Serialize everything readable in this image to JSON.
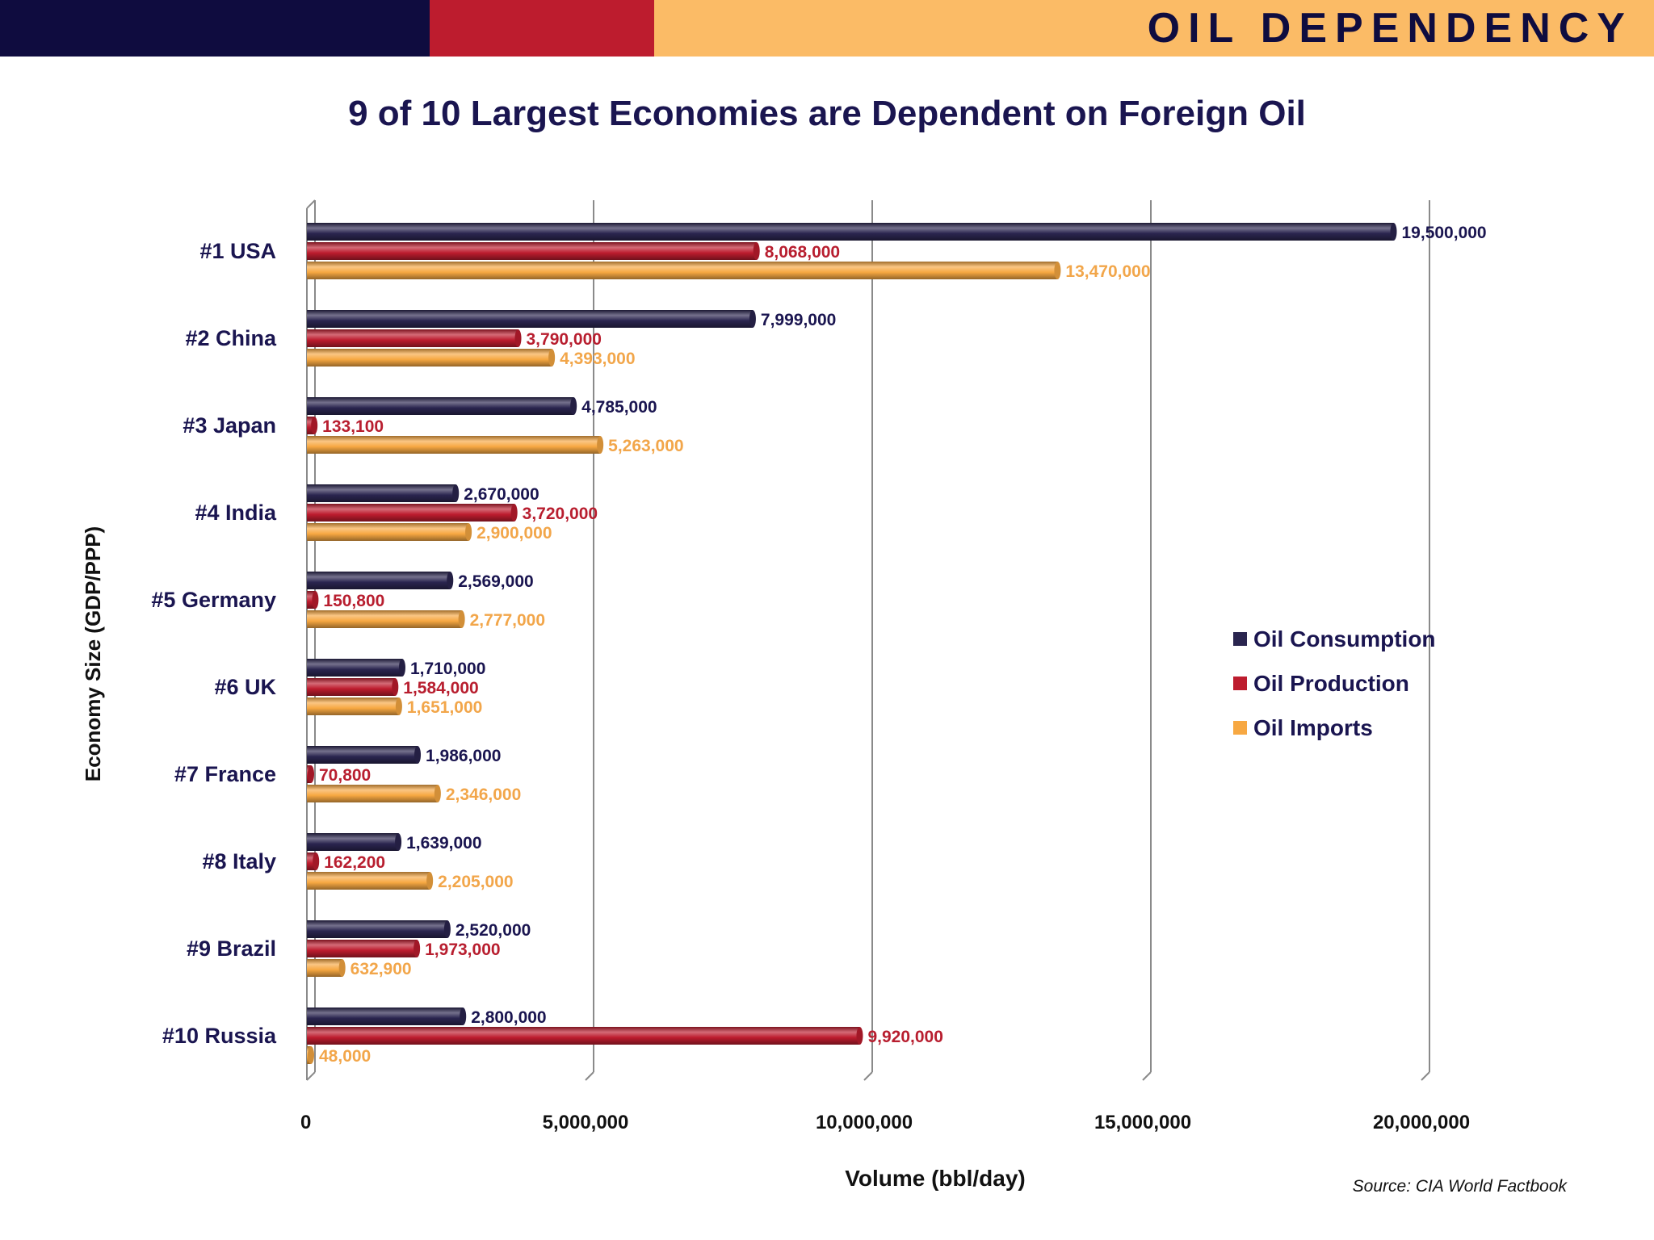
{
  "header": {
    "banner_title": "OIL DEPENDENCY",
    "colors": {
      "navy": "#0f0c3f",
      "red": "#bd1c2e",
      "gold": "#fbbb66"
    }
  },
  "footer": {
    "source": "Source: CIA World Factbook"
  },
  "chart_data": {
    "type": "bar",
    "orientation": "horizontal",
    "title": "9 of 10 Largest Economies are Dependent on Foreign Oil",
    "xlabel": "Volume (bbl/day)",
    "ylabel": "Economy Size (GDP/PPP)",
    "xlim": [
      0,
      20000000
    ],
    "x_ticks": [
      0,
      5000000,
      10000000,
      15000000,
      20000000
    ],
    "x_tick_labels": [
      "0",
      "5,000,000",
      "10,000,000",
      "15,000,000",
      "20,000,000"
    ],
    "grid": true,
    "legend_position": "right",
    "categories": [
      "#1 USA",
      "#2 China",
      "#3 Japan",
      "#4 India",
      "#5 Germany",
      "#6 UK",
      "#7 France",
      "#8 Italy",
      "#9 Brazil",
      "#10 Russia"
    ],
    "series": [
      {
        "name": "Oil Consumption",
        "color": "#2a254f",
        "values": [
          19500000,
          7999000,
          4785000,
          2670000,
          2569000,
          1710000,
          1986000,
          1639000,
          2520000,
          2800000
        ],
        "labels": [
          "19,500,000",
          "7,999,000",
          "4,785,000",
          "2,670,000",
          "2,569,000",
          "1,710,000",
          "1,986,000",
          "1,639,000",
          "2,520,000",
          "2,800,000"
        ]
      },
      {
        "name": "Oil Production",
        "color": "#bd1c2e",
        "values": [
          8068000,
          3790000,
          133100,
          3720000,
          150800,
          1584000,
          70800,
          162200,
          1973000,
          9920000
        ],
        "labels": [
          "8,068,000",
          "3,790,000",
          "133,100",
          "3,720,000",
          "150,800",
          "1,584,000",
          "70,800",
          "162,200",
          "1,973,000",
          "9,920,000"
        ]
      },
      {
        "name": "Oil Imports",
        "color": "#f7a842",
        "values": [
          13470000,
          4393000,
          5263000,
          2900000,
          2777000,
          1651000,
          2346000,
          2205000,
          632900,
          48000
        ],
        "labels": [
          "13,470,000",
          "4,393,000",
          "5,263,000",
          "2,900,000",
          "2,777,000",
          "1,651,000",
          "2,346,000",
          "2,205,000",
          "632,900",
          "48,000"
        ]
      }
    ]
  }
}
